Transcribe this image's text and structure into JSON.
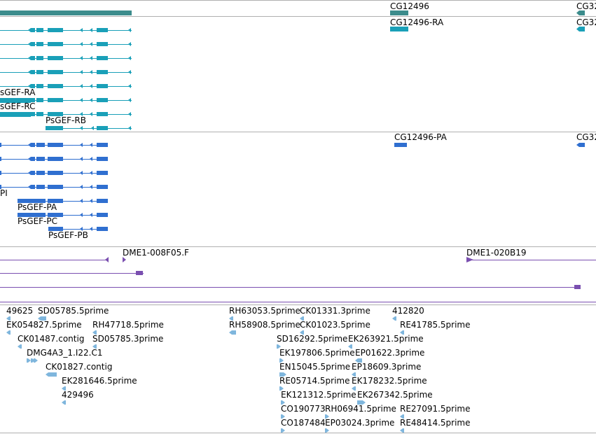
{
  "colors": {
    "gene": "#3c8c8c",
    "transcript": "#1aa0b8",
    "protein": "#2f6fd0",
    "clone": "#7a4fb0",
    "est": "#7fb6dd",
    "divider": "#b0b0b0"
  },
  "gene_track": {
    "labels": [
      "CG12496",
      "CG32"
    ]
  },
  "transcript_track": {
    "labels": [
      "CG12496-RA",
      "CG32",
      "sGEF-RA",
      "sGEF-RC",
      "PsGEF-RB"
    ]
  },
  "protein_track": {
    "labels": [
      "CG12496-PA",
      "CG32",
      "PI",
      "PsGEF-PA",
      "PsGEF-PC",
      "PsGEF-PB"
    ]
  },
  "clone_track": {
    "labels": [
      "DME1-008F05.F",
      "DME1-020B19"
    ]
  },
  "est_track": {
    "labels": [
      "49625",
      "SD05785.5prime",
      "EK054827.5prime",
      "RH47718.5prime",
      "CK01487.contig",
      "SD05785.3prime",
      "DMG4A3_1.I22.C1",
      "CK01827.contig",
      "EK281646.5prime",
      "429496",
      "RH63053.5prime",
      "CK01331.3prime",
      "412820",
      "RH58908.5prime",
      "CK01023.5prime",
      "RE41785.5prime",
      "SD16292.5prime",
      "EK263921.5prime",
      "EK197806.5prime",
      "EP01622.3prime",
      "EN15045.5prime",
      "EP18609.3prime",
      "RE05714.5prime",
      "EK178232.5prime",
      "EK121312.5prime",
      "EK267342.5prime",
      "CO190773",
      "RH06941.5prime",
      "RE27091.5prime",
      "CO187484",
      "EP03024.3prime",
      "RE48414.5prime"
    ]
  }
}
